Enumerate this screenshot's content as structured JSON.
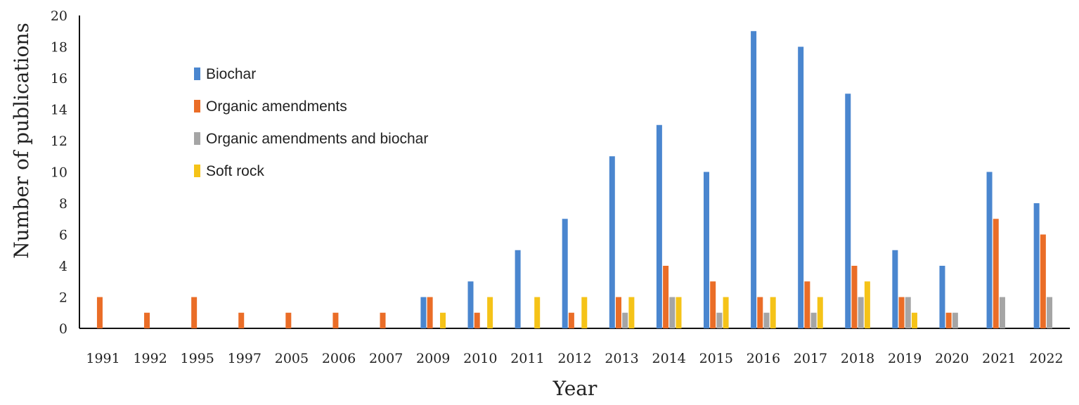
{
  "chart_data": {
    "type": "bar",
    "title": "",
    "xlabel": "Year",
    "ylabel": "Number of publications",
    "ylim": [
      0,
      20
    ],
    "yticks": [
      "0",
      "2",
      "4",
      "6",
      "8",
      "10",
      "12",
      "14",
      "16",
      "18",
      "20"
    ],
    "grid": false,
    "legend_position": "top-left",
    "categories": [
      "1991",
      "1992",
      "1995",
      "1997",
      "2005",
      "2006",
      "2007",
      "2009",
      "2010",
      "2011",
      "2012",
      "2013",
      "2014",
      "2015",
      "2016",
      "2017",
      "2018",
      "2019",
      "2020",
      "2021",
      "2022"
    ],
    "series": [
      {
        "name": "Biochar",
        "color": "#4a86cf",
        "values": [
          0,
          0,
          0,
          0,
          0,
          0,
          0,
          2,
          3,
          5,
          7,
          11,
          13,
          10,
          19,
          18,
          15,
          5,
          4,
          10,
          8
        ]
      },
      {
        "name": "Organic amendments",
        "color": "#ea6d27",
        "values": [
          2,
          1,
          2,
          1,
          1,
          1,
          1,
          2,
          1,
          0,
          1,
          2,
          4,
          3,
          2,
          3,
          4,
          2,
          1,
          7,
          6
        ]
      },
      {
        "name": "Organic amendments and biochar",
        "color": "#a5a5a5",
        "values": [
          0,
          0,
          0,
          0,
          0,
          0,
          0,
          0,
          0,
          0,
          0,
          1,
          2,
          1,
          1,
          1,
          2,
          2,
          1,
          2,
          2
        ]
      },
      {
        "name": "Soft rock",
        "color": "#f5c318",
        "values": [
          0,
          0,
          0,
          0,
          0,
          0,
          0,
          1,
          2,
          2,
          2,
          2,
          2,
          2,
          2,
          2,
          3,
          1,
          0,
          0,
          0
        ]
      }
    ]
  }
}
